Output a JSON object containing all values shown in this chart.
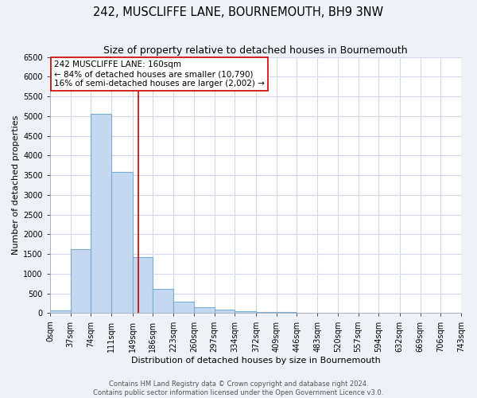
{
  "title": "242, MUSCLIFFE LANE, BOURNEMOUTH, BH9 3NW",
  "subtitle": "Size of property relative to detached houses in Bournemouth",
  "xlabel": "Distribution of detached houses by size in Bournemouth",
  "ylabel": "Number of detached properties",
  "bin_edges": [
    0,
    37,
    74,
    111,
    149,
    186,
    223,
    260,
    297,
    334,
    372,
    409,
    446,
    483,
    520,
    557,
    594,
    632,
    669,
    706,
    743
  ],
  "bin_labels": [
    "0sqm",
    "37sqm",
    "74sqm",
    "111sqm",
    "149sqm",
    "186sqm",
    "223sqm",
    "260sqm",
    "297sqm",
    "334sqm",
    "372sqm",
    "409sqm",
    "446sqm",
    "483sqm",
    "520sqm",
    "557sqm",
    "594sqm",
    "632sqm",
    "669sqm",
    "706sqm",
    "743sqm"
  ],
  "bar_heights": [
    75,
    1620,
    5050,
    3580,
    1420,
    610,
    300,
    150,
    90,
    40,
    30,
    20,
    0,
    0,
    0,
    0,
    0,
    0,
    0,
    0
  ],
  "bar_color": "#c5d8f0",
  "bar_edgecolor": "#7aadd4",
  "ylim": [
    0,
    6500
  ],
  "yticks": [
    0,
    500,
    1000,
    1500,
    2000,
    2500,
    3000,
    3500,
    4000,
    4500,
    5000,
    5500,
    6000,
    6500
  ],
  "property_line_x": 160,
  "property_line_color": "#cc0000",
  "annotation_text": "242 MUSCLIFFE LANE: 160sqm\n← 84% of detached houses are smaller (10,790)\n16% of semi-detached houses are larger (2,002) →",
  "annotation_box_color": "#ffffff",
  "annotation_box_edgecolor": "#cc0000",
  "footer_line1": "Contains HM Land Registry data © Crown copyright and database right 2024.",
  "footer_line2": "Contains public sector information licensed under the Open Government Licence v3.0.",
  "fig_background_color": "#eef2f8",
  "plot_background_color": "#ffffff",
  "grid_color": "#d0daea",
  "title_fontsize": 10.5,
  "subtitle_fontsize": 9,
  "axis_label_fontsize": 8,
  "tick_fontsize": 7,
  "footer_fontsize": 6,
  "annotation_fontsize": 7.5
}
